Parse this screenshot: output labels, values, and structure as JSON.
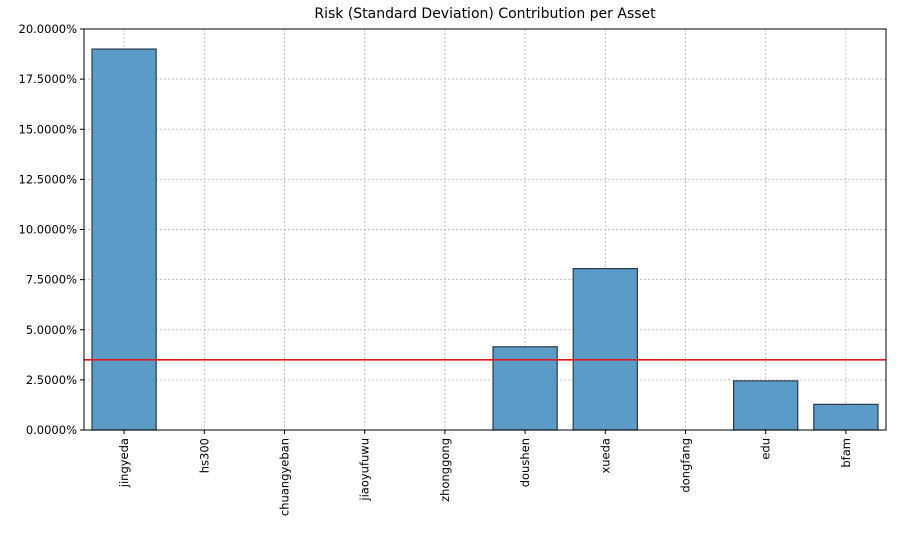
{
  "chart_data": {
    "type": "bar",
    "title": "Risk (Standard Deviation) Contribution per Asset",
    "xlabel": "",
    "ylabel": "",
    "categories": [
      "jingyeda",
      "hs300",
      "chuangyeban",
      "jiaoyufuwu",
      "zhonggong",
      "doushen",
      "xueda",
      "dongfang",
      "edu",
      "bfam"
    ],
    "values": [
      19.0,
      0.0,
      0.0,
      0.0,
      0.0,
      4.15,
      8.05,
      0.0,
      2.45,
      1.28
    ],
    "value_unit": "percent",
    "ylim": [
      0,
      20
    ],
    "yticks": [
      0,
      2.5,
      5,
      7.5,
      10,
      12.5,
      15,
      17.5,
      20
    ],
    "ytick_labels": [
      "0.0000%",
      "2.5000%",
      "5.0000%",
      "7.5000%",
      "10.0000%",
      "12.5000%",
      "15.0000%",
      "17.5000%",
      "20.0000%"
    ],
    "reference_line": {
      "y": 3.5,
      "color": "#e41a1c"
    },
    "grid": true,
    "legend": "none",
    "bar_color": "#5b9bc8",
    "bar_edge_color": "#2b3b48"
  }
}
